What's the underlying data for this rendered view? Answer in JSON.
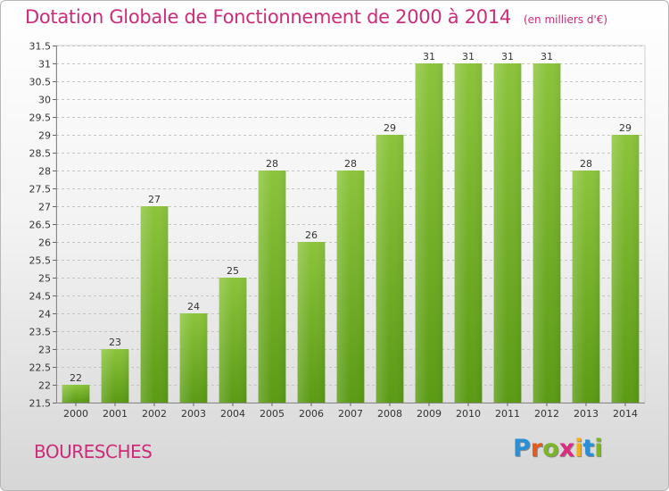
{
  "header": {
    "title": "Dotation Globale de Fonctionnement de 2000 à 2014",
    "subtitle": "(en milliers d'€)"
  },
  "footer": {
    "commune": "BOURESCHES",
    "logo": {
      "letters": [
        "P",
        "r",
        "o",
        "x",
        "i",
        "t",
        "i"
      ],
      "colors": [
        "#2b8fd6",
        "#e8591a",
        "#7db52a",
        "#d92d7f",
        "#f2b01e",
        "#2b8fd6",
        "#7db52a"
      ]
    }
  },
  "chart_data": {
    "type": "bar",
    "categories": [
      "2000",
      "2001",
      "2002",
      "2003",
      "2004",
      "2005",
      "2006",
      "2007",
      "2008",
      "2009",
      "2010",
      "2011",
      "2012",
      "2013",
      "2014"
    ],
    "values": [
      22,
      23,
      27,
      24,
      25,
      28,
      26,
      28,
      29,
      31,
      31,
      31,
      31,
      28,
      29
    ],
    "ylim": [
      21.5,
      31.5
    ],
    "yticks": [
      "21.5",
      "22",
      "22.5",
      "23",
      "23.5",
      "24",
      "24.5",
      "25",
      "25.5",
      "26",
      "26.5",
      "27",
      "27.5",
      "28",
      "28.5",
      "29",
      "29.5",
      "30",
      "30.5",
      "31",
      "31.5"
    ],
    "grid": "horizontal-dashed",
    "bar_color": "#8cc43c",
    "bar_color_dark": "#5a9a14"
  }
}
